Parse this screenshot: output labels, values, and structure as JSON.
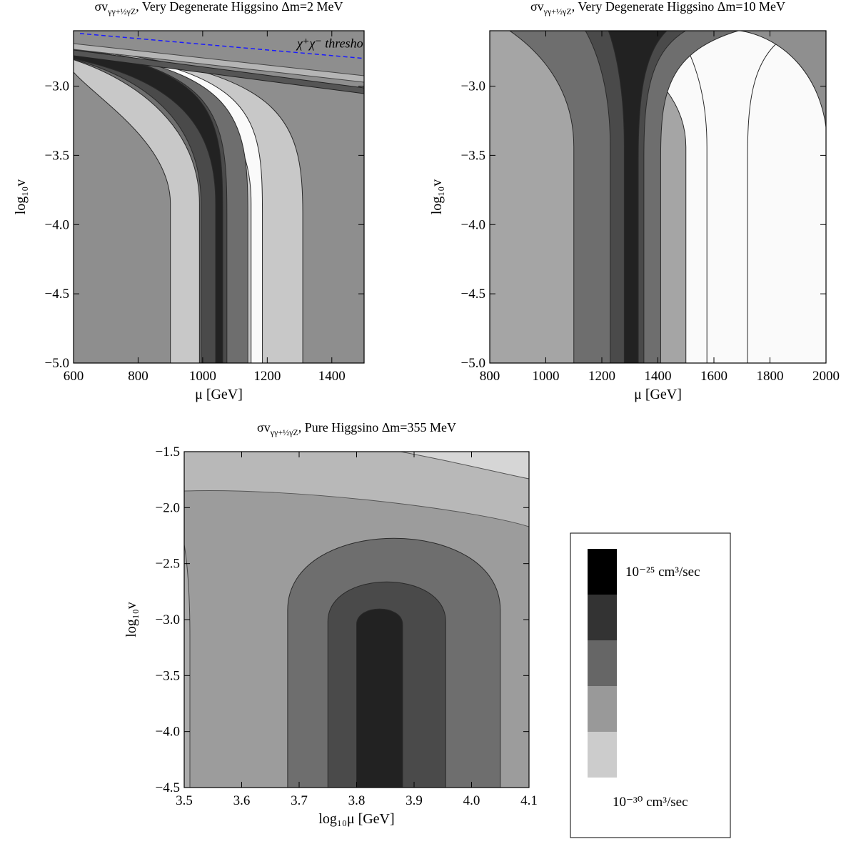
{
  "chart_data": [
    {
      "type": "heatmap",
      "title_prefix": "σv",
      "title_sub": "γγ+½γZ",
      "title_suffix": ", Very Degenerate Higgsino Δm=2 MeV",
      "xlabel": "μ [GeV]",
      "ylabel": "log₁₀v",
      "xlim": [
        600,
        1500
      ],
      "ylim": [
        -5.0,
        -2.6
      ],
      "x_ticks": [
        600,
        800,
        1000,
        1200,
        1400
      ],
      "y_ticks": [
        -5.0,
        -4.5,
        -4.0,
        -3.5,
        -3.0
      ],
      "x_tick_labels": [
        "600",
        "800",
        "1000",
        "1200",
        "1400"
      ],
      "y_tick_labels": [
        "−5.0",
        "−4.5",
        "−4.0",
        "−3.5",
        "−3.0"
      ],
      "annotation": {
        "text": "χ⁺χ⁻ threshold",
        "color": "#1a1aff",
        "line": [
          [
            620,
            -2.62
          ],
          [
            1500,
            -2.8
          ]
        ],
        "at": [
          1410,
          -2.72
        ]
      },
      "bands": [
        {
          "level": 1,
          "x_start": 900,
          "x_end": 1310
        },
        {
          "level": 0,
          "x_start": 1150,
          "x_end": 1185
        },
        {
          "level": 2,
          "x_start": 990,
          "x_end": 1140
        },
        {
          "level": 3,
          "x_start": 995,
          "x_end": 1075
        },
        {
          "level": 4,
          "x_start": 1040,
          "x_end": 1062
        }
      ]
    },
    {
      "type": "heatmap",
      "title_prefix": "σv",
      "title_sub": "γγ+½γZ",
      "title_suffix": ", Very Degenerate Higgsino Δm=10 MeV",
      "xlabel": "μ [GeV]",
      "ylabel": "log₁₀v",
      "xlim": [
        800,
        2000
      ],
      "ylim": [
        -5.0,
        -2.6
      ],
      "x_ticks": [
        800,
        1000,
        1200,
        1400,
        1600,
        1800,
        2000
      ],
      "y_ticks": [
        -5.0,
        -4.5,
        -4.0,
        -3.5,
        -3.0
      ],
      "x_tick_labels": [
        "800",
        "1000",
        "1200",
        "1400",
        "1600",
        "1800",
        "2000"
      ],
      "y_tick_labels": [
        "−5.0",
        "−4.5",
        "−4.0",
        "−3.5",
        "−3.0"
      ],
      "bands": [
        {
          "level": 0,
          "x_start": 1500,
          "x_end": 2000
        },
        {
          "level": 0,
          "x_start": 1575,
          "x_end": 1720
        },
        {
          "level": 2,
          "x_start": 1100,
          "x_end": 1410
        },
        {
          "level": 3,
          "x_start": 1230,
          "x_end": 1350
        },
        {
          "level": 4,
          "x_start": 1280,
          "x_end": 1330
        }
      ]
    },
    {
      "type": "heatmap",
      "title_prefix": "σv",
      "title_sub": "γγ+½γZ",
      "title_suffix": ",  Pure Higgsino Δm=355 MeV",
      "xlabel": "log₁₀μ [GeV]",
      "ylabel": "log₁₀v",
      "xlim": [
        3.5,
        4.1
      ],
      "ylim": [
        -4.5,
        -1.5
      ],
      "x_ticks": [
        3.5,
        3.6,
        3.7,
        3.8,
        3.9,
        4.0,
        4.1
      ],
      "y_ticks": [
        -4.5,
        -4.0,
        -3.5,
        -3.0,
        -2.5,
        -2.0,
        -1.5
      ],
      "x_tick_labels": [
        "3.5",
        "3.6",
        "3.7",
        "3.8",
        "3.9",
        "4.0",
        "4.1"
      ],
      "y_tick_labels": [
        "−4.5",
        "−4.0",
        "−3.5",
        "−3.0",
        "−2.5",
        "−2.0",
        "−1.5"
      ],
      "bands": [
        {
          "level": 2,
          "x_start": 3.68,
          "x_end": 4.05,
          "y_top": -2.25
        },
        {
          "level": 3,
          "x_start": 3.75,
          "x_end": 3.955,
          "y_top": -2.65
        },
        {
          "level": 4,
          "x_start": 3.8,
          "x_end": 3.88,
          "y_top": -2.9
        }
      ]
    }
  ],
  "legend": {
    "levels": [
      {
        "color": "#000000"
      },
      {
        "color": "#333333"
      },
      {
        "color": "#666666"
      },
      {
        "color": "#999999"
      },
      {
        "color": "#cccccc"
      }
    ],
    "top_label": "10⁻²⁵ cm³/sec",
    "bottom_label": "10⁻³⁰ cm³/sec"
  },
  "colors": {
    "level_fill": [
      "#fafafa",
      "#c8c8c8",
      "#6e6e6e",
      "#4a4a4a",
      "#222222"
    ],
    "background_1": "#8e8e8e",
    "background_2": "#a5a5a5",
    "background_3": "#9c9c9c"
  }
}
